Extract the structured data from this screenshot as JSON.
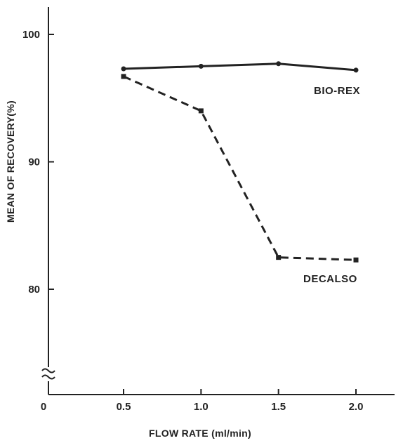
{
  "chart_data": {
    "type": "line",
    "title": "",
    "xlabel": "FLOW RATE (ml/min)",
    "ylabel": "MEAN OF RECOVERY(%)",
    "x_ticks": [
      "0",
      "0.5",
      "1.0",
      "1.5",
      "2.0"
    ],
    "y_ticks": [
      "80",
      "90",
      "100"
    ],
    "xlim": [
      0,
      2.25
    ],
    "ylim": [
      73,
      102
    ],
    "y_axis_break": true,
    "grid": false,
    "legend": "none",
    "series": [
      {
        "name": "BIO-REX",
        "line_style": "solid",
        "marker": "circle",
        "color": "#222222",
        "x": [
          0.5,
          1.0,
          1.5,
          2.0
        ],
        "y": [
          97.3,
          97.5,
          97.7,
          97.2
        ]
      },
      {
        "name": "DECALSO",
        "line_style": "dashed",
        "marker": "square",
        "color": "#222222",
        "x": [
          0.5,
          1.0,
          1.5,
          2.0
        ],
        "y": [
          96.7,
          94.0,
          82.5,
          82.3
        ]
      }
    ]
  }
}
